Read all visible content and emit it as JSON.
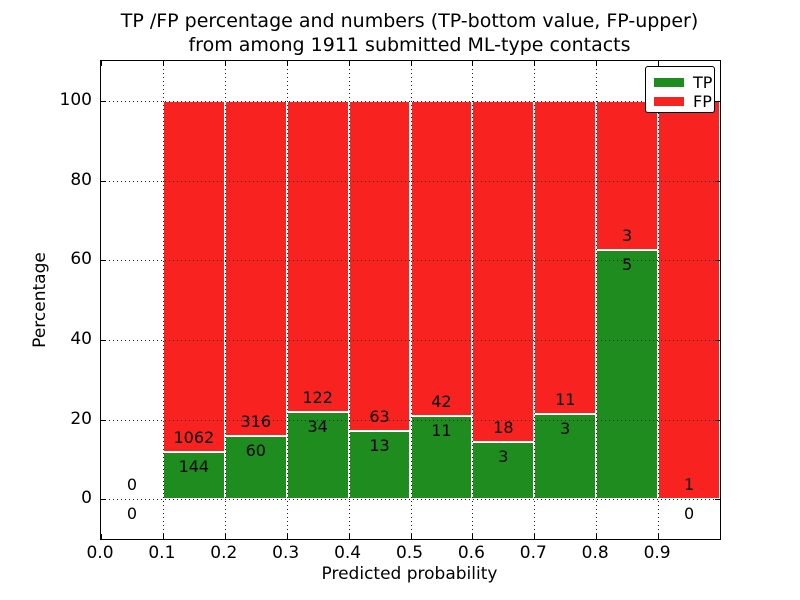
{
  "title": {
    "line1": "TP /FP percentage and numbers (TP-bottom value, FP-upper)",
    "line2": "from among 1911 submitted ML-type contacts"
  },
  "axes": {
    "ylabel": "Percentage",
    "xlabel": "Predicted probability",
    "ylim": [
      -10,
      110
    ],
    "xlim": [
      0,
      1
    ],
    "y_ticks": [
      0,
      20,
      40,
      60,
      80,
      100
    ],
    "y_tick_labels": [
      "0",
      "20",
      "40",
      "60",
      "80",
      "100"
    ],
    "x_tick_values": [
      0.0,
      0.1,
      0.2,
      0.3,
      0.4,
      0.5,
      0.6,
      0.7,
      0.8,
      0.9
    ],
    "x_tick_labels": [
      "0.0",
      "0.1",
      "0.2",
      "0.3",
      "0.4",
      "0.5",
      "0.6",
      "0.7",
      "0.8",
      "0.9"
    ],
    "grid": "dotted"
  },
  "legend": {
    "items": [
      {
        "label": "TP",
        "color": "#1e8c1e"
      },
      {
        "label": "FP",
        "color": "#f82320"
      }
    ]
  },
  "colors": {
    "tp_green": "#1e8c1e",
    "fp_red": "#f82320",
    "bar_edge": "#ffffff",
    "spine": "#000000"
  },
  "chart_data": {
    "type": "bar",
    "stacked": true,
    "unit": "percent_of_bin_total",
    "bin_edges": [
      0.0,
      0.1,
      0.2,
      0.3,
      0.4,
      0.5,
      0.6,
      0.7,
      0.8,
      0.9,
      1.0
    ],
    "series": [
      {
        "name": "TP",
        "color": "#1e8c1e",
        "counts": [
          0,
          144,
          60,
          34,
          13,
          11,
          3,
          3,
          5,
          0
        ]
      },
      {
        "name": "FP",
        "color": "#f82320",
        "counts": [
          0,
          1062,
          316,
          122,
          63,
          42,
          18,
          11,
          3,
          1
        ]
      }
    ],
    "tp_percent_heights": [
      0,
      11.94,
      15.96,
      21.79,
      17.11,
      20.75,
      14.29,
      21.43,
      62.5,
      0
    ],
    "fp_percent_heights": [
      0,
      88.06,
      84.04,
      78.21,
      82.89,
      79.25,
      85.71,
      78.57,
      37.5,
      100
    ],
    "total_contacts": 1911,
    "legend_position": "upper right",
    "grid": true
  }
}
